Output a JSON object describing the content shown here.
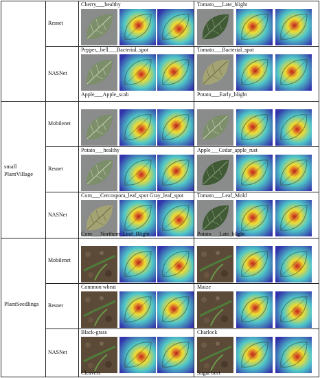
{
  "datasets": [
    {
      "label": "",
      "models": [
        {
          "label": "Resnet",
          "top_caps": [
            "Cherry___healthy",
            "Tomato___Late_blight"
          ],
          "tiles": [
            [
              "leaf-l",
              "heat-a",
              "heat-b"
            ],
            [
              "leaf-d",
              "heat-c",
              "heat-a"
            ]
          ]
        },
        {
          "label": "NASNet",
          "top_caps": [
            "Pepper,_bell___Bacterial_spot",
            "Tomato___Bacterial_spot"
          ],
          "tiles": [
            [
              "leaf-l",
              "heat-b",
              "heat-c"
            ],
            [
              "leaf-y",
              "heat-a",
              "heat-c"
            ]
          ]
        }
      ],
      "tail_caps": [
        "Apple___Apple_scab",
        "Potato___Early_blight"
      ]
    },
    {
      "label": "small PlantVillage",
      "models": [
        {
          "label": "Mobilenet",
          "top_caps": [
            "",
            ""
          ],
          "tiles": [
            [
              "leaf-l",
              "heat-b",
              "heat-a"
            ],
            [
              "leaf-l",
              "heat-c",
              "heat-b"
            ]
          ]
        },
        {
          "label": "Resnet",
          "top_caps": [
            "Potato___healthy",
            "Apple___Cedar_apple_rust"
          ],
          "tiles": [
            [
              "leaf-l",
              "heat-b",
              "heat-a"
            ],
            [
              "leaf-d",
              "heat-c",
              "heat-a"
            ]
          ]
        },
        {
          "label": "NASNet",
          "top_caps": [
            "Corn___Cercospora_leaf_spot Gray_leaf_spot",
            "Tomato___Leaf_Mold"
          ],
          "tiles": [
            [
              "leaf-y",
              "heat-a",
              "heat-b"
            ],
            [
              "leaf-d",
              "heat-c",
              "heat-a"
            ]
          ]
        }
      ],
      "tail_caps": [
        "Corn___Northern_Leaf_Blight",
        "Potato___Late_blight"
      ]
    },
    {
      "label": "PlantSeedlings",
      "models": [
        {
          "label": "Mobilenet",
          "top_caps": [
            "",
            ""
          ],
          "tiles": [
            [
              "soil",
              "heat-a",
              "heat-b"
            ],
            [
              "soil",
              "heat-c",
              "heat-b"
            ]
          ]
        },
        {
          "label": "Resnet",
          "top_caps": [
            "Common wheat",
            "Maize"
          ],
          "tiles": [
            [
              "soil",
              "heat-a",
              "heat-c"
            ],
            [
              "soil",
              "heat-a",
              "heat-b"
            ]
          ]
        },
        {
          "label": "NASNet",
          "top_caps": [
            "Black-grass",
            "Charlock"
          ],
          "tiles": [
            [
              "soil",
              "heat-b",
              "heat-a"
            ],
            [
              "soil",
              "heat-c",
              "heat-b"
            ]
          ]
        }
      ],
      "tail_caps": [
        "Cleavers",
        "Sugar beet"
      ]
    }
  ],
  "colors": {
    "rule": "#222222",
    "heat": [
      "#c81e1e",
      "#f0dc32",
      "#50c8c8",
      "#3232aa"
    ],
    "leaf_light": "#7c8f6a",
    "leaf_dark": "#3f5a35",
    "leaf_yellow": "#a3a373",
    "soil": "#5c4a38",
    "bg_gray": "#8a8c8c"
  }
}
